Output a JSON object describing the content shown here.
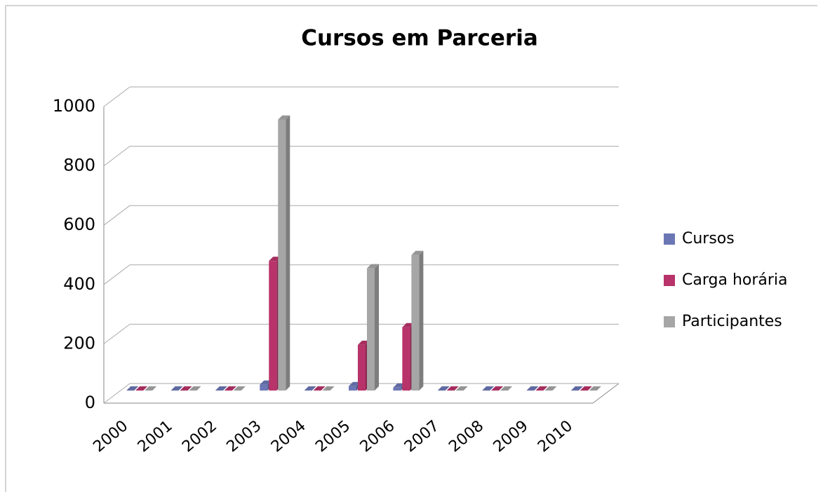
{
  "chart_data": {
    "type": "bar3d",
    "title": "Cursos em Parceria",
    "categories": [
      "2000",
      "2001",
      "2002",
      "2003",
      "2004",
      "2005",
      "2006",
      "2007",
      "2008",
      "2009",
      "2010"
    ],
    "series": [
      {
        "name": "Cursos",
        "color": "#6b77b5",
        "values": [
          0,
          0,
          0,
          20,
          0,
          15,
          10,
          0,
          0,
          0,
          0
        ]
      },
      {
        "name": "Carga horária",
        "color": "#b8336a",
        "values": [
          0,
          0,
          0,
          440,
          0,
          155,
          215,
          0,
          0,
          0,
          0
        ]
      },
      {
        "name": "Participantes",
        "color": "#a6a6a6",
        "values": [
          0,
          0,
          0,
          920,
          0,
          415,
          460,
          0,
          0,
          0,
          0
        ]
      }
    ],
    "ylim": [
      0,
      1000
    ],
    "yticks": [
      0,
      200,
      400,
      600,
      800,
      1000
    ],
    "grid": true,
    "legend": "right"
  }
}
